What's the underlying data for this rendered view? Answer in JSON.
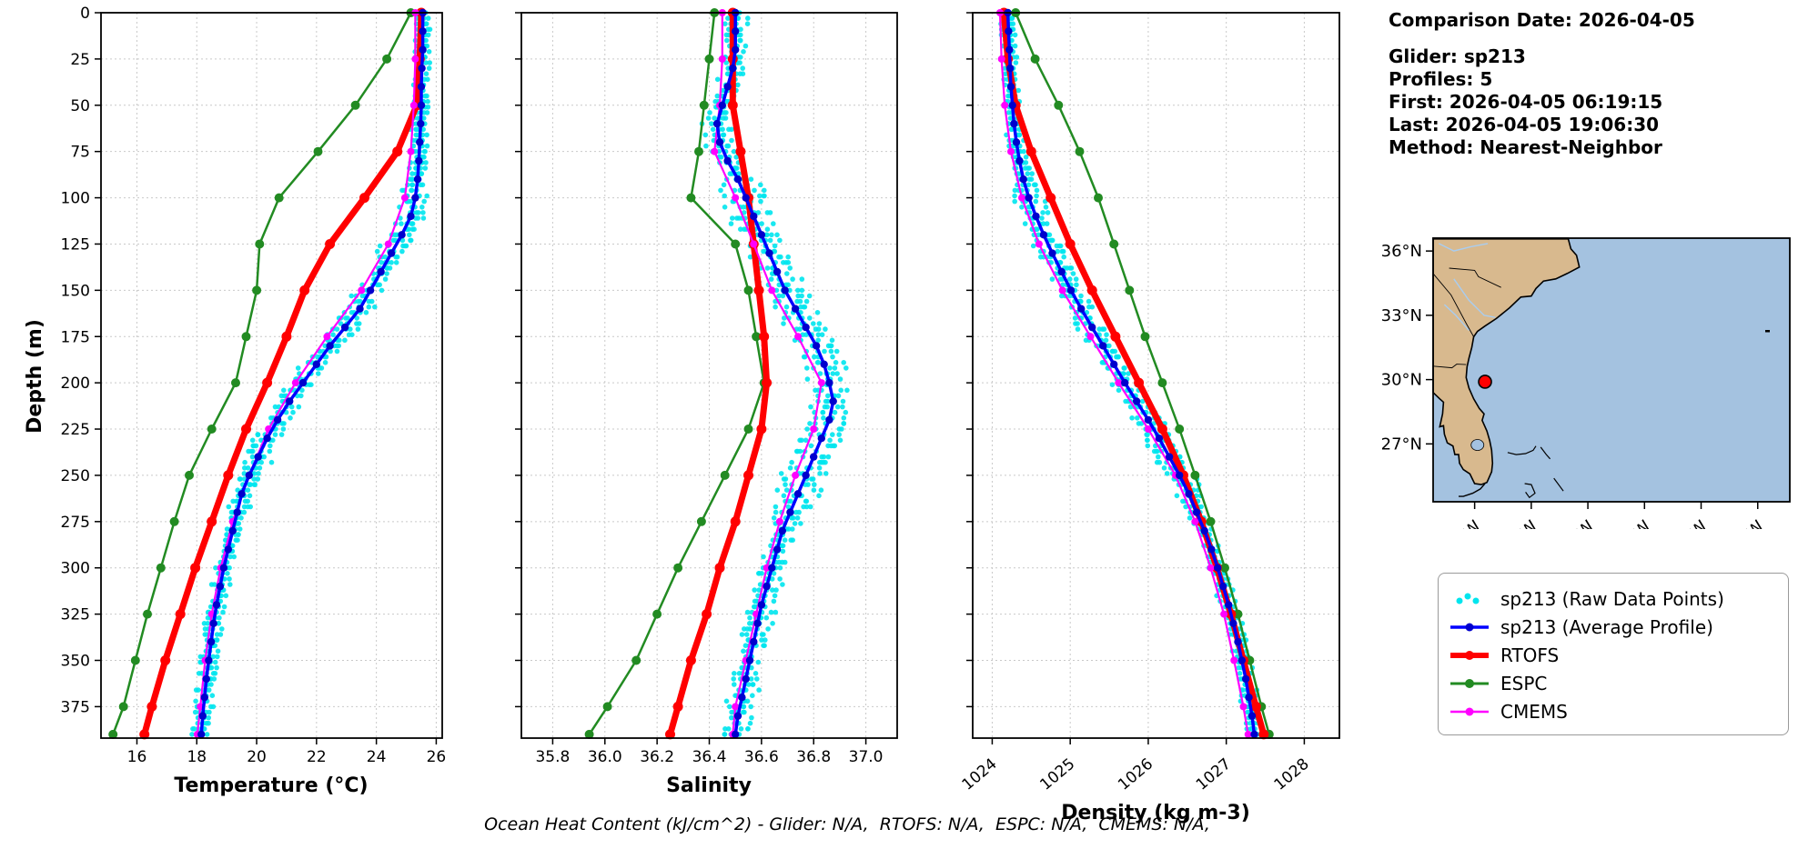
{
  "header": {
    "comparison_date": "Comparison Date: 2026-04-05",
    "glider": "Glider: sp213",
    "profiles": "Profiles: 5",
    "first": "First: 2026-04-05 06:19:15",
    "last": "Last: 2026-04-05 19:06:30",
    "method": "Method: Nearest-Neighbor"
  },
  "chart_data": {
    "type": "line",
    "ylabel": "Depth (m)",
    "ylim": [
      0,
      392
    ],
    "yticks": [
      0,
      25,
      50,
      75,
      100,
      125,
      150,
      175,
      200,
      225,
      250,
      275,
      300,
      325,
      350,
      375
    ],
    "ytick_labels": [
      "0",
      "25",
      "50",
      "75",
      "100",
      "125",
      "150",
      "175",
      "200",
      "225",
      "250",
      "275",
      "300",
      "325",
      "350",
      "375"
    ],
    "depths_model": [
      0,
      25,
      50,
      75,
      100,
      125,
      150,
      175,
      200,
      225,
      250,
      275,
      300,
      325,
      350,
      375,
      390
    ],
    "depths_avg": [
      0,
      10,
      20,
      30,
      40,
      50,
      60,
      70,
      80,
      90,
      100,
      110,
      120,
      130,
      140,
      150,
      160,
      170,
      180,
      190,
      200,
      210,
      220,
      230,
      240,
      250,
      260,
      270,
      280,
      290,
      300,
      310,
      320,
      330,
      340,
      350,
      360,
      370,
      380,
      390
    ],
    "series_colors": {
      "raw": "#00e5ee",
      "avg_line": "#0000ff",
      "avg_marker": "#0000cd",
      "rtofs": "#ff0000",
      "espc": "#228b22",
      "cmems": "#ff00ff"
    },
    "panels": [
      {
        "key": "temperature",
        "xlabel": "Temperature (°C)",
        "xlim": [
          14.8,
          26.2
        ],
        "xticks": [
          16,
          18,
          20,
          22,
          24,
          26
        ],
        "xtick_labels": [
          "16",
          "18",
          "20",
          "22",
          "24",
          "26"
        ],
        "rotate_xticklabels": false,
        "raw_jitter": 0.27,
        "series": {
          "avg": [
            25.55,
            25.55,
            25.55,
            25.52,
            25.5,
            25.5,
            25.48,
            25.45,
            25.42,
            25.38,
            25.3,
            25.15,
            24.85,
            24.5,
            24.15,
            23.8,
            23.45,
            22.95,
            22.45,
            22.0,
            21.55,
            21.1,
            20.7,
            20.35,
            20.05,
            19.75,
            19.5,
            19.35,
            19.2,
            19.05,
            18.9,
            18.78,
            18.66,
            18.56,
            18.48,
            18.4,
            18.32,
            18.26,
            18.2,
            18.15
          ],
          "rtofs": [
            25.5,
            25.45,
            25.35,
            24.7,
            23.6,
            22.45,
            21.6,
            21.0,
            20.35,
            19.65,
            19.05,
            18.5,
            17.95,
            17.45,
            16.95,
            16.5,
            16.25
          ],
          "espc": [
            25.15,
            24.35,
            23.3,
            22.05,
            20.75,
            20.1,
            20.0,
            19.65,
            19.3,
            18.5,
            17.75,
            17.25,
            16.8,
            16.35,
            15.95,
            15.55,
            15.2
          ],
          "cmems": [
            25.3,
            25.3,
            25.25,
            25.15,
            24.95,
            24.4,
            23.5,
            22.35,
            21.3,
            20.4,
            19.75,
            19.2,
            18.8,
            18.5,
            18.28,
            18.12,
            18.02
          ]
        }
      },
      {
        "key": "salinity",
        "xlabel": "Salinity",
        "xlim": [
          35.68,
          37.12
        ],
        "xticks": [
          35.8,
          36.0,
          36.2,
          36.4,
          36.6,
          36.8,
          37.0
        ],
        "xtick_labels": [
          "35.8",
          "36.0",
          "36.2",
          "36.4",
          "36.6",
          "36.8",
          "37.0"
        ],
        "rotate_xticklabels": false,
        "raw_jitter": 0.05,
        "series": {
          "avg": [
            36.5,
            36.5,
            36.5,
            36.49,
            36.47,
            36.45,
            36.43,
            36.44,
            36.47,
            36.51,
            36.54,
            36.57,
            36.6,
            36.63,
            36.66,
            36.69,
            36.73,
            36.77,
            36.81,
            36.84,
            36.86,
            36.875,
            36.86,
            36.83,
            36.8,
            36.77,
            36.74,
            36.71,
            36.68,
            36.66,
            36.64,
            36.62,
            36.6,
            36.585,
            36.57,
            36.555,
            36.54,
            36.525,
            36.51,
            36.5
          ],
          "rtofs": [
            36.49,
            36.49,
            36.49,
            36.52,
            36.55,
            36.57,
            36.59,
            36.61,
            36.62,
            36.6,
            36.55,
            36.5,
            36.44,
            36.39,
            36.33,
            36.28,
            36.25
          ],
          "espc": [
            36.42,
            36.4,
            36.38,
            36.36,
            36.33,
            36.5,
            36.55,
            36.58,
            36.61,
            36.55,
            36.46,
            36.37,
            36.28,
            36.2,
            36.12,
            36.01,
            35.94
          ],
          "cmems": [
            36.45,
            36.45,
            36.44,
            36.42,
            36.5,
            36.57,
            36.64,
            36.74,
            36.83,
            36.8,
            36.73,
            36.67,
            36.62,
            36.58,
            36.54,
            36.5,
            36.49
          ]
        }
      },
      {
        "key": "density",
        "xlabel": "Density (kg m-3)",
        "xlim": [
          1023.75,
          1028.45
        ],
        "xticks": [
          1024,
          1025,
          1026,
          1027,
          1028
        ],
        "xtick_labels": [
          "1024",
          "1025",
          "1026",
          "1027",
          "1028"
        ],
        "rotate_xticklabels": true,
        "raw_jitter": 0.1,
        "series": {
          "avg": [
            1024.2,
            1024.21,
            1024.22,
            1024.23,
            1024.24,
            1024.26,
            1024.28,
            1024.31,
            1024.35,
            1024.4,
            1024.47,
            1024.56,
            1024.66,
            1024.77,
            1024.89,
            1025.01,
            1025.14,
            1025.28,
            1025.42,
            1025.56,
            1025.7,
            1025.85,
            1026.0,
            1026.14,
            1026.27,
            1026.4,
            1026.52,
            1026.62,
            1026.72,
            1026.81,
            1026.89,
            1026.96,
            1027.03,
            1027.09,
            1027.15,
            1027.2,
            1027.25,
            1027.29,
            1027.33,
            1027.36
          ],
          "rtofs": [
            1024.15,
            1024.2,
            1024.3,
            1024.5,
            1024.75,
            1025.0,
            1025.28,
            1025.58,
            1025.88,
            1026.18,
            1026.45,
            1026.68,
            1026.88,
            1027.06,
            1027.22,
            1027.38,
            1027.48
          ],
          "espc": [
            1024.3,
            1024.55,
            1024.85,
            1025.12,
            1025.36,
            1025.56,
            1025.76,
            1025.96,
            1026.18,
            1026.4,
            1026.6,
            1026.8,
            1026.98,
            1027.15,
            1027.3,
            1027.45,
            1027.55
          ],
          "cmems": [
            1024.1,
            1024.12,
            1024.16,
            1024.24,
            1024.38,
            1024.6,
            1024.9,
            1025.26,
            1025.62,
            1026.0,
            1026.35,
            1026.6,
            1026.8,
            1026.97,
            1027.1,
            1027.22,
            1027.28
          ]
        }
      }
    ],
    "legend": [
      {
        "label": "sp213 (Raw Data Points)"
      },
      {
        "label": "sp213 (Average Profile)"
      },
      {
        "label": "RTOFS"
      },
      {
        "label": "ESPC"
      },
      {
        "label": "CMEMS"
      }
    ]
  },
  "map": {
    "extent": {
      "lon": [
        -83.2,
        -64.3
      ],
      "lat": [
        24.3,
        36.6
      ]
    },
    "lat_vals": [
      36,
      33,
      30,
      27
    ],
    "lat_labels": [
      "36°N",
      "33°N",
      "30°N",
      "27°N"
    ],
    "lon_vals": [
      -81,
      -78,
      -75,
      -72,
      -69,
      -66
    ],
    "lon_labels": [
      "81°W",
      "78°W",
      "75°W",
      "72°W",
      "69°W",
      "66°W"
    ],
    "marker": {
      "lon": -80.45,
      "lat": 29.9,
      "color": "#ff0000"
    },
    "colors": {
      "ocean": "#a4c2e0",
      "land": "#d8b98e",
      "coast": "#000000",
      "river": "#a9cdf0"
    }
  },
  "footer": {
    "note": "Ocean Heat Content (kJ/cm^2) - Glider: N/A,  RTOFS: N/A,  ESPC: N/A,  CMEMS: N/A,"
  }
}
